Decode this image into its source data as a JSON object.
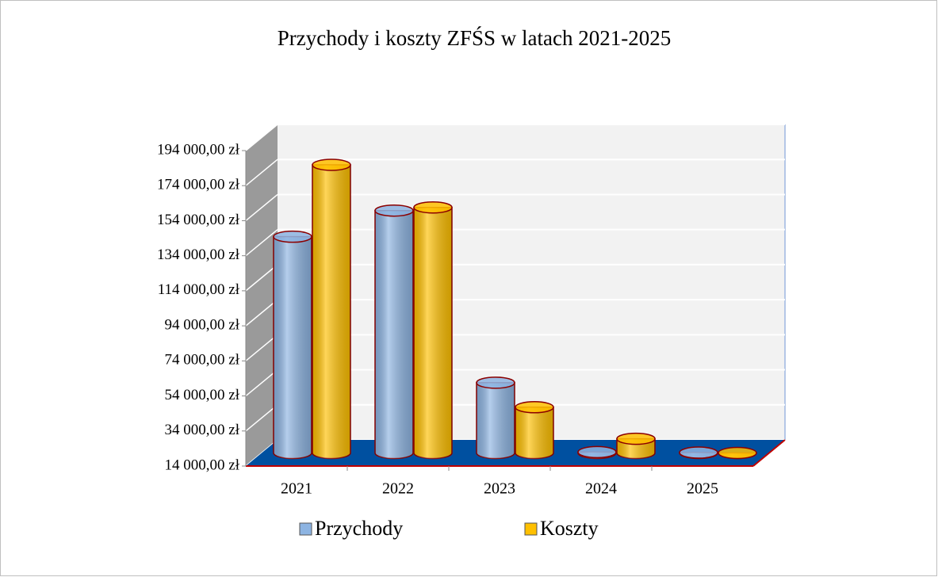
{
  "chart_data": {
    "type": "bar3d",
    "title": "Przychody i koszty ZFŚS w latach 2021-2025",
    "categories": [
      "2021",
      "2022",
      "2023",
      "2024",
      "2025"
    ],
    "series": [
      {
        "name": "Przychody",
        "color": "#8db4e2",
        "values": [
          137400,
          152300,
          54100,
          14500,
          14200
        ]
      },
      {
        "name": "Koszty",
        "color": "#ffc000",
        "values": [
          178400,
          154100,
          40100,
          22100,
          14000
        ]
      }
    ],
    "ylim": [
      14000,
      194000
    ],
    "yticks": [
      {
        "value": 14000,
        "label": "14 000,00 zł"
      },
      {
        "value": 34000,
        "label": "34 000,00 zł"
      },
      {
        "value": 54000,
        "label": "54 000,00 zł"
      },
      {
        "value": 74000,
        "label": "74 000,00 zł"
      },
      {
        "value": 94000,
        "label": "94 000,00 zł"
      },
      {
        "value": 114000,
        "label": "114 000,00 zł"
      },
      {
        "value": 134000,
        "label": "134 000,00 zł"
      },
      {
        "value": 154000,
        "label": "154 000,00 zł"
      },
      {
        "value": 174000,
        "label": "174 000,00 zł"
      },
      {
        "value": 194000,
        "label": "194 000,00 zł"
      }
    ],
    "grid": true
  }
}
